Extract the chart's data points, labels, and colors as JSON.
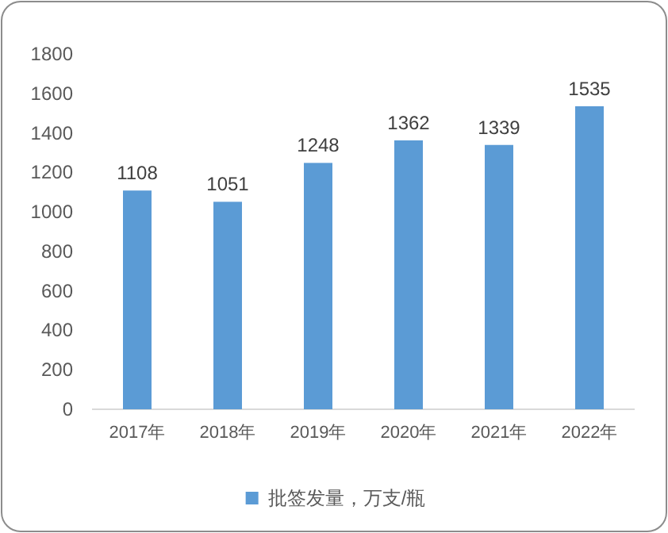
{
  "chart_data": {
    "type": "bar",
    "categories": [
      "2017年",
      "2018年",
      "2019年",
      "2020年",
      "2021年",
      "2022年"
    ],
    "series": [
      {
        "name": "批签发量，万支/瓶",
        "color": "#5b9bd5",
        "values": [
          1108,
          1051,
          1248,
          1362,
          1339,
          1535
        ]
      }
    ],
    "ylim": [
      0,
      1800
    ],
    "yticks": [
      0,
      200,
      400,
      600,
      800,
      1000,
      1200,
      1400,
      1600,
      1800
    ],
    "data_labels": true,
    "legend": "bottom"
  }
}
